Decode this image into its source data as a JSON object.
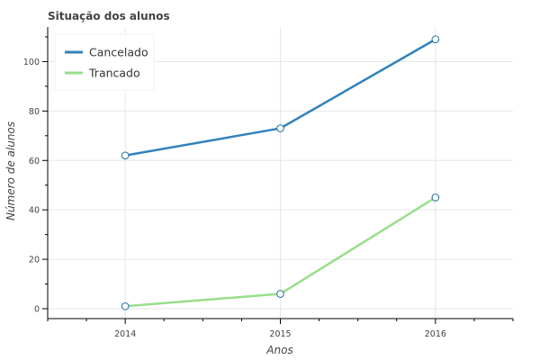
{
  "chart_data": {
    "type": "line",
    "title": "Situação dos alunos",
    "xlabel": "Anos",
    "ylabel": "Número de alunos",
    "x": [
      2014,
      2015,
      2016
    ],
    "x_ticks": [
      2014,
      2015,
      2016
    ],
    "xlim": [
      2013.5,
      2016.5
    ],
    "ylim": [
      -4,
      114
    ],
    "y_ticks": [
      0,
      20,
      40,
      60,
      80,
      100
    ],
    "grid": true,
    "legend_position": "top-left",
    "series": [
      {
        "name": "Cancelado",
        "values": [
          62,
          73,
          109
        ],
        "color": "#3182bd"
      },
      {
        "name": "Trancado",
        "values": [
          1,
          6,
          45
        ],
        "color": "#98df8a"
      }
    ],
    "marker": {
      "fill": "#ffffff",
      "stroke": "#1f6f9f"
    }
  }
}
